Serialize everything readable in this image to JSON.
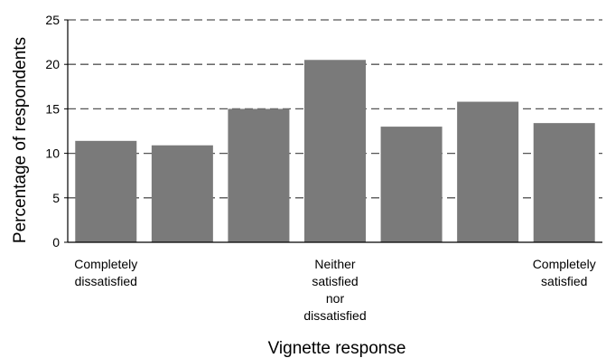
{
  "chart_data": {
    "type": "bar",
    "categories": [
      [
        "Completely",
        "dissatisfied"
      ],
      [],
      [],
      [
        "Neither",
        "satisfied",
        "nor",
        "dissatisfied"
      ],
      [],
      [],
      [
        "Completely",
        "satisfied"
      ]
    ],
    "values": [
      11.4,
      10.9,
      15.0,
      20.5,
      13.0,
      15.8,
      13.4
    ],
    "yticks": [
      "0",
      "5",
      "10",
      "15",
      "20",
      "25"
    ],
    "ylim": [
      0,
      25
    ],
    "ytick_step": 5,
    "xlabel": "Vignette response",
    "ylabel": "Percentage of respondents",
    "grid": "horizontal-dashed",
    "colors": {
      "bar": "#7a7a7a",
      "grid": "#555555",
      "axis": "#000000"
    }
  }
}
